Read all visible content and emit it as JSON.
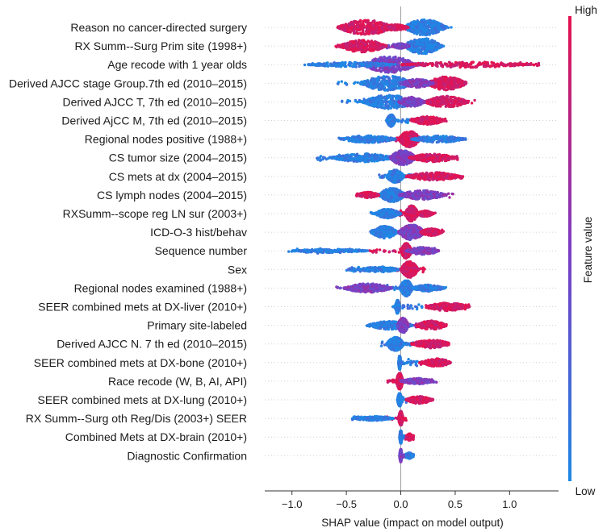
{
  "chart_data": {
    "type": "scatter",
    "subtype": "shap-beeswarm-summary",
    "xlabel": "SHAP value (impact on model output)",
    "xlim": [
      -1.25,
      1.45
    ],
    "xticks": [
      -1.0,
      -0.5,
      0.0,
      0.5,
      1.0
    ],
    "xtick_labels": [
      "−1.0",
      "−0.5",
      "0.0",
      "0.5",
      "1.0"
    ],
    "colorbar": {
      "title": "Feature value",
      "high_label": "High",
      "low_label": "Low",
      "low_color": "#1e88e5",
      "mid_color": "#7c3dc4",
      "high_color": "#e5134f"
    },
    "features": [
      {
        "name": "Reason no cancer-directed surgery",
        "min": -0.58,
        "max": 0.48,
        "clusters": [
          {
            "c": -0.32,
            "w": 0.26,
            "h": 0.9,
            "col": "high"
          },
          {
            "c": 0.22,
            "w": 0.2,
            "h": 0.95,
            "col": "low"
          },
          {
            "c": -0.05,
            "w": 0.12,
            "h": 0.35,
            "col": "high"
          }
        ]
      },
      {
        "name": "RX Summ--Surg Prim site (1998+)",
        "min": -0.6,
        "max": 0.42,
        "clusters": [
          {
            "c": -0.35,
            "w": 0.22,
            "h": 0.75,
            "col": "high"
          },
          {
            "c": 0.2,
            "w": 0.18,
            "h": 0.95,
            "col": "low"
          },
          {
            "c": 0.0,
            "w": 0.08,
            "h": 0.3,
            "col": "mid"
          }
        ]
      },
      {
        "name": "Age recode with 1 year olds",
        "min": -0.9,
        "max": 1.27,
        "clusters": [
          {
            "c": -0.1,
            "w": 0.25,
            "h": 1.0,
            "col": "mid"
          },
          {
            "c": -0.45,
            "w": 0.4,
            "h": 0.3,
            "col": "low"
          },
          {
            "c": 0.6,
            "w": 0.6,
            "h": 0.35,
            "col": "high"
          }
        ]
      },
      {
        "name": "Derived AJCC stage Group.7th ed (2010–2015)",
        "min": -0.58,
        "max": 0.6,
        "clusters": [
          {
            "c": -0.12,
            "w": 0.25,
            "h": 0.9,
            "col": "low"
          },
          {
            "c": 0.42,
            "w": 0.18,
            "h": 0.85,
            "col": "high"
          },
          {
            "c": 0.15,
            "w": 0.15,
            "h": 0.5,
            "col": "mid"
          }
        ]
      },
      {
        "name": "Derived AJCC T, 7th ed (2010–2015)",
        "min": -0.55,
        "max": 0.68,
        "clusters": [
          {
            "c": -0.1,
            "w": 0.25,
            "h": 0.85,
            "col": "low"
          },
          {
            "c": 0.42,
            "w": 0.2,
            "h": 0.7,
            "col": "high"
          },
          {
            "c": 0.1,
            "w": 0.12,
            "h": 0.6,
            "col": "mid"
          }
        ]
      },
      {
        "name": "Derived AjCC M, 7th ed (2010–2015)",
        "min": -0.13,
        "max": 0.42,
        "clusters": [
          {
            "c": -0.09,
            "w": 0.04,
            "h": 0.75,
            "col": "low"
          },
          {
            "c": 0.25,
            "w": 0.15,
            "h": 0.5,
            "col": "high"
          }
        ]
      },
      {
        "name": "Regional nodes positive (1988+)",
        "min": -0.58,
        "max": 0.6,
        "clusters": [
          {
            "c": -0.3,
            "w": 0.25,
            "h": 0.45,
            "col": "low"
          },
          {
            "c": 0.08,
            "w": 0.1,
            "h": 1.0,
            "col": "high"
          },
          {
            "c": 0.35,
            "w": 0.25,
            "h": 0.4,
            "col": "low"
          }
        ]
      },
      {
        "name": "CS tumor size (2004–2015)",
        "min": -0.78,
        "max": 0.55,
        "clusters": [
          {
            "c": -0.35,
            "w": 0.3,
            "h": 0.5,
            "col": "low"
          },
          {
            "c": 0.02,
            "w": 0.12,
            "h": 0.9,
            "col": "mid"
          },
          {
            "c": 0.3,
            "w": 0.22,
            "h": 0.5,
            "col": "high"
          }
        ]
      },
      {
        "name": "CS mets at dx (2004–2015)",
        "min": -0.2,
        "max": 0.58,
        "clusters": [
          {
            "c": -0.05,
            "w": 0.08,
            "h": 0.8,
            "col": "low"
          },
          {
            "c": 0.3,
            "w": 0.25,
            "h": 0.5,
            "col": "high"
          }
        ]
      },
      {
        "name": "CS lymph nodes (2004–2015)",
        "min": -0.42,
        "max": 0.48,
        "clusters": [
          {
            "c": -0.08,
            "w": 0.12,
            "h": 0.85,
            "col": "low"
          },
          {
            "c": 0.2,
            "w": 0.22,
            "h": 0.55,
            "col": "mid"
          },
          {
            "c": -0.3,
            "w": 0.1,
            "h": 0.35,
            "col": "high"
          }
        ]
      },
      {
        "name": "RXSumm--scope reg LN sur (2003+)",
        "min": -0.28,
        "max": 0.32,
        "clusters": [
          {
            "c": -0.12,
            "w": 0.12,
            "h": 0.55,
            "col": "low"
          },
          {
            "c": 0.1,
            "w": 0.06,
            "h": 1.0,
            "col": "high"
          },
          {
            "c": 0.22,
            "w": 0.08,
            "h": 0.35,
            "col": "high"
          }
        ]
      },
      {
        "name": "ICD-O-3 hist/behav",
        "min": -0.28,
        "max": 0.4,
        "clusters": [
          {
            "c": -0.15,
            "w": 0.12,
            "h": 0.75,
            "col": "low"
          },
          {
            "c": 0.1,
            "w": 0.12,
            "h": 0.95,
            "col": "mid"
          },
          {
            "c": 0.28,
            "w": 0.1,
            "h": 0.45,
            "col": "high"
          }
        ]
      },
      {
        "name": "Sequence number",
        "min": -1.03,
        "max": 0.35,
        "clusters": [
          {
            "c": -0.65,
            "w": 0.35,
            "h": 0.22,
            "col": "low"
          },
          {
            "c": 0.05,
            "w": 0.05,
            "h": 0.95,
            "col": "high"
          },
          {
            "c": 0.2,
            "w": 0.15,
            "h": 0.45,
            "col": "mid"
          }
        ]
      },
      {
        "name": "Sex",
        "min": -0.5,
        "max": 0.22,
        "clusters": [
          {
            "c": -0.2,
            "w": 0.2,
            "h": 0.3,
            "col": "low"
          },
          {
            "c": 0.08,
            "w": 0.08,
            "h": 1.0,
            "col": "high"
          }
        ]
      },
      {
        "name": "Regional nodes examined (1988+)",
        "min": -0.6,
        "max": 0.42,
        "clusters": [
          {
            "c": -0.3,
            "w": 0.22,
            "h": 0.55,
            "col": "mid"
          },
          {
            "c": 0.05,
            "w": 0.06,
            "h": 1.0,
            "col": "low"
          },
          {
            "c": 0.25,
            "w": 0.15,
            "h": 0.4,
            "col": "low"
          }
        ]
      },
      {
        "name": "SEER combined mets at DX-liver (2010+)",
        "min": -0.08,
        "max": 0.63,
        "clusters": [
          {
            "c": -0.03,
            "w": 0.02,
            "h": 0.85,
            "col": "low"
          },
          {
            "c": 0.43,
            "w": 0.2,
            "h": 0.5,
            "col": "high"
          }
        ]
      },
      {
        "name": "Primary site-labeled",
        "min": -0.32,
        "max": 0.42,
        "clusters": [
          {
            "c": -0.1,
            "w": 0.2,
            "h": 0.5,
            "col": "low"
          },
          {
            "c": 0.02,
            "w": 0.05,
            "h": 0.95,
            "col": "mid"
          },
          {
            "c": 0.28,
            "w": 0.14,
            "h": 0.55,
            "col": "high"
          }
        ]
      },
      {
        "name": "Derived AJCC N. 7 th ed (2010–2015)",
        "min": -0.18,
        "max": 0.44,
        "clusters": [
          {
            "c": -0.05,
            "w": 0.08,
            "h": 0.85,
            "col": "low"
          },
          {
            "c": 0.28,
            "w": 0.18,
            "h": 0.5,
            "col": "high"
          }
        ]
      },
      {
        "name": "SEER combined mets at DX-bone (2010+)",
        "min": -0.02,
        "max": 0.46,
        "clusters": [
          {
            "c": -0.01,
            "w": 0.01,
            "h": 0.85,
            "col": "low"
          },
          {
            "c": 0.33,
            "w": 0.13,
            "h": 0.5,
            "col": "high"
          }
        ]
      },
      {
        "name": "Race recode (W, B, AI, API)",
        "min": -0.12,
        "max": 0.33,
        "clusters": [
          {
            "c": -0.01,
            "w": 0.03,
            "h": 1.0,
            "col": "high"
          },
          {
            "c": 0.15,
            "w": 0.15,
            "h": 0.35,
            "col": "mid"
          }
        ]
      },
      {
        "name": "SEER combined mets at DX-lung (2010+)",
        "min": -0.03,
        "max": 0.3,
        "clusters": [
          {
            "c": -0.01,
            "w": 0.02,
            "h": 0.8,
            "col": "low"
          },
          {
            "c": 0.17,
            "w": 0.12,
            "h": 0.45,
            "col": "high"
          }
        ]
      },
      {
        "name": "RX Summ--Surg oth Reg/Dis (2003+) SEER",
        "min": -0.45,
        "max": 0.05,
        "clusters": [
          {
            "c": -0.25,
            "w": 0.18,
            "h": 0.25,
            "col": "low"
          },
          {
            "c": 0.0,
            "w": 0.02,
            "h": 0.9,
            "col": "high"
          }
        ]
      },
      {
        "name": "Combined Mets at DX-brain (2010+)",
        "min": -0.01,
        "max": 0.12,
        "clusters": [
          {
            "c": 0.0,
            "w": 0.01,
            "h": 0.8,
            "col": "low"
          },
          {
            "c": 0.08,
            "w": 0.03,
            "h": 0.4,
            "col": "high"
          }
        ]
      },
      {
        "name": "Diagnostic Confirmation",
        "min": -0.01,
        "max": 0.12,
        "clusters": [
          {
            "c": 0.0,
            "w": 0.01,
            "h": 0.8,
            "col": "mid"
          },
          {
            "c": 0.08,
            "w": 0.03,
            "h": 0.35,
            "col": "low"
          }
        ]
      }
    ]
  }
}
